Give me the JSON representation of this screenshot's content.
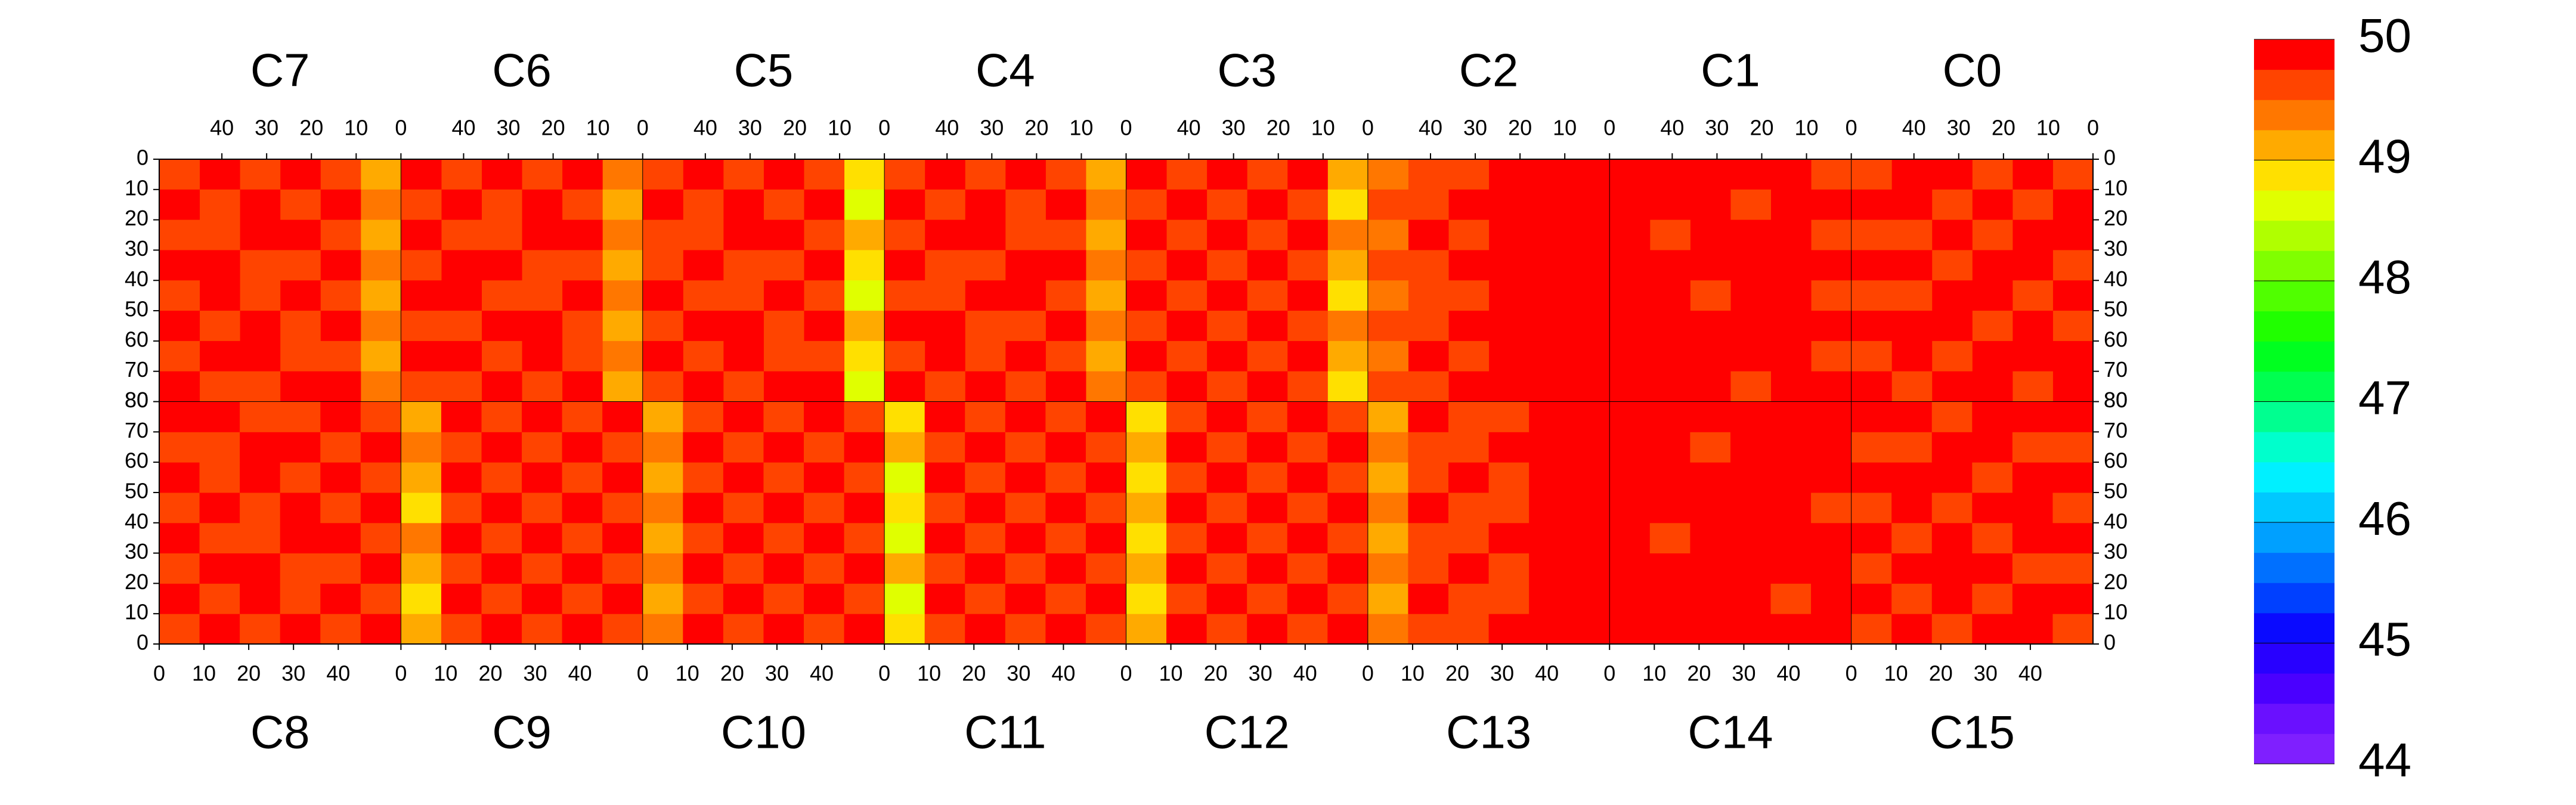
{
  "chart_data": {
    "type": "heatmap-panels",
    "xlim": [
      0,
      54
    ],
    "xticks": [
      0,
      10,
      20,
      30,
      40
    ],
    "ylim": [
      0,
      80
    ],
    "yticks": [
      0,
      10,
      20,
      30,
      40,
      50,
      60,
      70,
      80
    ],
    "top_panels": [
      {
        "name": "C7",
        "values": [
          [
            49.1,
            49.6,
            49.9,
            49.6,
            49.9,
            49.6
          ],
          [
            49.4,
            49.9,
            49.6,
            49.9,
            49.6,
            49.9
          ],
          [
            49.1,
            49.6,
            49.9,
            49.9,
            49.6,
            49.6
          ],
          [
            49.4,
            49.9,
            49.6,
            49.6,
            49.9,
            49.9
          ],
          [
            49.1,
            49.6,
            49.9,
            49.6,
            49.9,
            49.6
          ],
          [
            49.4,
            49.9,
            49.6,
            49.9,
            49.6,
            49.9
          ],
          [
            49.1,
            49.6,
            49.6,
            49.9,
            49.9,
            49.6
          ],
          [
            49.4,
            49.9,
            49.9,
            49.6,
            49.6,
            49.9
          ]
        ]
      },
      {
        "name": "C6",
        "values": [
          [
            49.4,
            49.9,
            49.6,
            49.9,
            49.6,
            49.9
          ],
          [
            49.1,
            49.6,
            49.9,
            49.6,
            49.9,
            49.6
          ],
          [
            49.4,
            49.9,
            49.9,
            49.6,
            49.6,
            49.9
          ],
          [
            49.1,
            49.6,
            49.6,
            49.9,
            49.9,
            49.6
          ],
          [
            49.4,
            49.9,
            49.6,
            49.6,
            49.9,
            49.9
          ],
          [
            49.1,
            49.6,
            49.9,
            49.9,
            49.6,
            49.6
          ],
          [
            49.4,
            49.6,
            49.9,
            49.6,
            49.9,
            49.9
          ],
          [
            49.1,
            49.9,
            49.6,
            49.9,
            49.6,
            49.6
          ]
        ]
      },
      {
        "name": "C5",
        "values": [
          [
            48.9,
            49.6,
            49.9,
            49.6,
            49.9,
            49.6
          ],
          [
            48.6,
            49.9,
            49.6,
            49.9,
            49.6,
            49.9
          ],
          [
            49.1,
            49.6,
            49.9,
            49.9,
            49.6,
            49.6
          ],
          [
            48.9,
            49.9,
            49.6,
            49.6,
            49.9,
            49.6
          ],
          [
            48.6,
            49.6,
            49.9,
            49.6,
            49.6,
            49.9
          ],
          [
            49.1,
            49.9,
            49.6,
            49.9,
            49.9,
            49.6
          ],
          [
            48.9,
            49.6,
            49.6,
            49.9,
            49.6,
            49.9
          ],
          [
            48.6,
            49.9,
            49.9,
            49.6,
            49.9,
            49.6
          ]
        ]
      },
      {
        "name": "C4",
        "values": [
          [
            49.1,
            49.6,
            49.9,
            49.6,
            49.9,
            49.6
          ],
          [
            49.4,
            49.9,
            49.6,
            49.9,
            49.6,
            49.9
          ],
          [
            49.1,
            49.6,
            49.6,
            49.9,
            49.9,
            49.6
          ],
          [
            49.4,
            49.9,
            49.9,
            49.6,
            49.6,
            49.9
          ],
          [
            49.1,
            49.6,
            49.9,
            49.9,
            49.6,
            49.6
          ],
          [
            49.4,
            49.9,
            49.6,
            49.6,
            49.9,
            49.9
          ],
          [
            49.1,
            49.6,
            49.9,
            49.6,
            49.9,
            49.6
          ],
          [
            49.4,
            49.9,
            49.6,
            49.9,
            49.6,
            49.9
          ]
        ]
      },
      {
        "name": "C3",
        "values": [
          [
            49.1,
            49.9,
            49.6,
            49.9,
            49.6,
            49.9
          ],
          [
            48.9,
            49.6,
            49.9,
            49.6,
            49.9,
            49.6
          ],
          [
            49.4,
            49.9,
            49.6,
            49.9,
            49.6,
            49.9
          ],
          [
            49.1,
            49.6,
            49.9,
            49.6,
            49.9,
            49.6
          ],
          [
            48.9,
            49.9,
            49.6,
            49.9,
            49.6,
            49.9
          ],
          [
            49.4,
            49.6,
            49.9,
            49.6,
            49.9,
            49.6
          ],
          [
            49.1,
            49.9,
            49.6,
            49.9,
            49.6,
            49.9
          ],
          [
            48.9,
            49.6,
            49.9,
            49.6,
            49.9,
            49.6
          ]
        ]
      },
      {
        "name": "C2",
        "values": [
          [
            49.9,
            49.9,
            49.9,
            49.6,
            49.6,
            49.4
          ],
          [
            49.9,
            49.9,
            49.9,
            49.9,
            49.6,
            49.6
          ],
          [
            49.9,
            49.9,
            49.9,
            49.6,
            49.9,
            49.4
          ],
          [
            49.9,
            49.9,
            49.9,
            49.9,
            49.6,
            49.6
          ],
          [
            49.9,
            49.9,
            49.9,
            49.6,
            49.6,
            49.4
          ],
          [
            49.9,
            49.9,
            49.9,
            49.9,
            49.6,
            49.6
          ],
          [
            49.9,
            49.9,
            49.9,
            49.6,
            49.9,
            49.4
          ],
          [
            49.9,
            49.9,
            49.9,
            49.9,
            49.6,
            49.6
          ]
        ]
      },
      {
        "name": "C1",
        "values": [
          [
            49.6,
            49.9,
            49.9,
            49.9,
            49.9,
            49.9
          ],
          [
            49.9,
            49.9,
            49.6,
            49.9,
            49.9,
            49.9
          ],
          [
            49.6,
            49.9,
            49.9,
            49.9,
            49.6,
            49.9
          ],
          [
            49.9,
            49.9,
            49.9,
            49.9,
            49.9,
            49.9
          ],
          [
            49.6,
            49.9,
            49.9,
            49.6,
            49.9,
            49.9
          ],
          [
            49.9,
            49.9,
            49.9,
            49.9,
            49.9,
            49.9
          ],
          [
            49.6,
            49.9,
            49.9,
            49.9,
            49.9,
            49.9
          ],
          [
            49.9,
            49.9,
            49.6,
            49.9,
            49.9,
            49.9
          ]
        ]
      },
      {
        "name": "C0",
        "values": [
          [
            49.6,
            49.9,
            49.6,
            49.9,
            49.9,
            49.6
          ],
          [
            49.9,
            49.6,
            49.9,
            49.6,
            49.9,
            49.9
          ],
          [
            49.9,
            49.9,
            49.6,
            49.9,
            49.6,
            49.6
          ],
          [
            49.6,
            49.9,
            49.9,
            49.6,
            49.9,
            49.9
          ],
          [
            49.9,
            49.6,
            49.9,
            49.9,
            49.6,
            49.6
          ],
          [
            49.6,
            49.9,
            49.6,
            49.9,
            49.9,
            49.9
          ],
          [
            49.9,
            49.9,
            49.9,
            49.6,
            49.9,
            49.6
          ],
          [
            49.9,
            49.6,
            49.9,
            49.9,
            49.6,
            49.9
          ]
        ]
      }
    ],
    "bottom_panels": [
      {
        "name": "C8",
        "values": [
          [
            49.6,
            49.9,
            49.6,
            49.9,
            49.6,
            49.9
          ],
          [
            49.9,
            49.6,
            49.9,
            49.6,
            49.9,
            49.6
          ],
          [
            49.6,
            49.9,
            49.9,
            49.6,
            49.6,
            49.9
          ],
          [
            49.9,
            49.6,
            49.6,
            49.9,
            49.9,
            49.6
          ],
          [
            49.6,
            49.9,
            49.6,
            49.9,
            49.6,
            49.9
          ],
          [
            49.9,
            49.6,
            49.9,
            49.6,
            49.9,
            49.6
          ],
          [
            49.6,
            49.6,
            49.9,
            49.9,
            49.6,
            49.9
          ],
          [
            49.9,
            49.9,
            49.6,
            49.6,
            49.9,
            49.6
          ]
        ]
      },
      {
        "name": "C9",
        "values": [
          [
            49.1,
            49.6,
            49.9,
            49.6,
            49.9,
            49.6
          ],
          [
            48.9,
            49.9,
            49.6,
            49.9,
            49.6,
            49.9
          ],
          [
            49.1,
            49.6,
            49.9,
            49.6,
            49.9,
            49.6
          ],
          [
            49.4,
            49.9,
            49.6,
            49.9,
            49.6,
            49.9
          ],
          [
            48.9,
            49.6,
            49.9,
            49.6,
            49.9,
            49.6
          ],
          [
            49.1,
            49.9,
            49.6,
            49.9,
            49.6,
            49.9
          ],
          [
            49.4,
            49.6,
            49.9,
            49.6,
            49.9,
            49.6
          ],
          [
            49.1,
            49.9,
            49.6,
            49.9,
            49.6,
            49.9
          ]
        ]
      },
      {
        "name": "C10",
        "values": [
          [
            49.4,
            49.9,
            49.6,
            49.9,
            49.6,
            49.9
          ],
          [
            49.1,
            49.6,
            49.9,
            49.6,
            49.9,
            49.6
          ],
          [
            49.4,
            49.9,
            49.6,
            49.9,
            49.6,
            49.9
          ],
          [
            49.1,
            49.6,
            49.9,
            49.6,
            49.9,
            49.6
          ],
          [
            49.4,
            49.9,
            49.6,
            49.9,
            49.6,
            49.9
          ],
          [
            49.1,
            49.6,
            49.9,
            49.6,
            49.9,
            49.6
          ],
          [
            49.4,
            49.9,
            49.6,
            49.9,
            49.6,
            49.9
          ],
          [
            49.1,
            49.6,
            49.9,
            49.6,
            49.9,
            49.6
          ]
        ]
      },
      {
        "name": "C11",
        "values": [
          [
            48.9,
            49.6,
            49.9,
            49.6,
            49.9,
            49.6
          ],
          [
            48.6,
            49.9,
            49.6,
            49.9,
            49.6,
            49.9
          ],
          [
            49.1,
            49.6,
            49.9,
            49.6,
            49.9,
            49.6
          ],
          [
            48.6,
            49.9,
            49.6,
            49.9,
            49.6,
            49.9
          ],
          [
            48.9,
            49.6,
            49.9,
            49.6,
            49.9,
            49.6
          ],
          [
            48.6,
            49.9,
            49.6,
            49.9,
            49.6,
            49.9
          ],
          [
            49.1,
            49.6,
            49.9,
            49.6,
            49.9,
            49.6
          ],
          [
            48.9,
            49.9,
            49.6,
            49.9,
            49.6,
            49.9
          ]
        ]
      },
      {
        "name": "C12",
        "values": [
          [
            49.1,
            49.9,
            49.6,
            49.9,
            49.6,
            49.9
          ],
          [
            48.9,
            49.6,
            49.9,
            49.6,
            49.9,
            49.6
          ],
          [
            49.1,
            49.9,
            49.6,
            49.9,
            49.6,
            49.9
          ],
          [
            48.9,
            49.6,
            49.9,
            49.6,
            49.9,
            49.6
          ],
          [
            49.1,
            49.9,
            49.6,
            49.9,
            49.6,
            49.9
          ],
          [
            48.9,
            49.6,
            49.9,
            49.6,
            49.9,
            49.6
          ],
          [
            49.1,
            49.9,
            49.6,
            49.9,
            49.6,
            49.9
          ],
          [
            48.9,
            49.6,
            49.9,
            49.6,
            49.9,
            49.6
          ]
        ]
      },
      {
        "name": "C13",
        "values": [
          [
            49.4,
            49.6,
            49.6,
            49.9,
            49.9,
            49.9
          ],
          [
            49.1,
            49.9,
            49.6,
            49.6,
            49.9,
            49.9
          ],
          [
            49.4,
            49.6,
            49.9,
            49.6,
            49.9,
            49.9
          ],
          [
            49.1,
            49.6,
            49.6,
            49.9,
            49.9,
            49.9
          ],
          [
            49.4,
            49.9,
            49.6,
            49.6,
            49.9,
            49.9
          ],
          [
            49.1,
            49.6,
            49.9,
            49.6,
            49.9,
            49.9
          ],
          [
            49.4,
            49.6,
            49.6,
            49.9,
            49.9,
            49.9
          ],
          [
            49.1,
            49.9,
            49.6,
            49.6,
            49.9,
            49.9
          ]
        ]
      },
      {
        "name": "C14",
        "values": [
          [
            49.9,
            49.9,
            49.9,
            49.9,
            49.9,
            49.9
          ],
          [
            49.9,
            49.9,
            49.9,
            49.9,
            49.6,
            49.9
          ],
          [
            49.9,
            49.9,
            49.9,
            49.9,
            49.9,
            49.9
          ],
          [
            49.9,
            49.6,
            49.9,
            49.9,
            49.9,
            49.9
          ],
          [
            49.9,
            49.9,
            49.9,
            49.9,
            49.9,
            49.6
          ],
          [
            49.9,
            49.9,
            49.9,
            49.9,
            49.9,
            49.9
          ],
          [
            49.9,
            49.9,
            49.6,
            49.9,
            49.9,
            49.9
          ],
          [
            49.9,
            49.9,
            49.9,
            49.9,
            49.9,
            49.9
          ]
        ]
      },
      {
        "name": "C15",
        "values": [
          [
            49.6,
            49.9,
            49.6,
            49.9,
            49.9,
            49.6
          ],
          [
            49.9,
            49.6,
            49.9,
            49.6,
            49.9,
            49.9
          ],
          [
            49.6,
            49.9,
            49.9,
            49.9,
            49.6,
            49.6
          ],
          [
            49.9,
            49.6,
            49.9,
            49.6,
            49.9,
            49.9
          ],
          [
            49.6,
            49.9,
            49.6,
            49.9,
            49.9,
            49.6
          ],
          [
            49.9,
            49.9,
            49.9,
            49.6,
            49.9,
            49.9
          ],
          [
            49.6,
            49.6,
            49.9,
            49.9,
            49.6,
            49.6
          ],
          [
            49.9,
            49.9,
            49.6,
            49.9,
            49.9,
            49.9
          ]
        ]
      }
    ],
    "colorbar": {
      "lim": [
        44,
        50
      ],
      "ticks": [
        44,
        45,
        46,
        47,
        48,
        49,
        50
      ],
      "colors": [
        "#7f1fff",
        "#6a10ff",
        "#4a00ff",
        "#2800ff",
        "#0a0aff",
        "#0040ff",
        "#0070ff",
        "#00a0ff",
        "#00c8ff",
        "#00f0ff",
        "#00ffcc",
        "#00ff90",
        "#00ff50",
        "#00ff20",
        "#20ff00",
        "#50ff00",
        "#80ff00",
        "#b0ff00",
        "#e0ff00",
        "#ffe000",
        "#ffaa00",
        "#ff7700",
        "#ff4400",
        "#ff0000"
      ]
    }
  }
}
